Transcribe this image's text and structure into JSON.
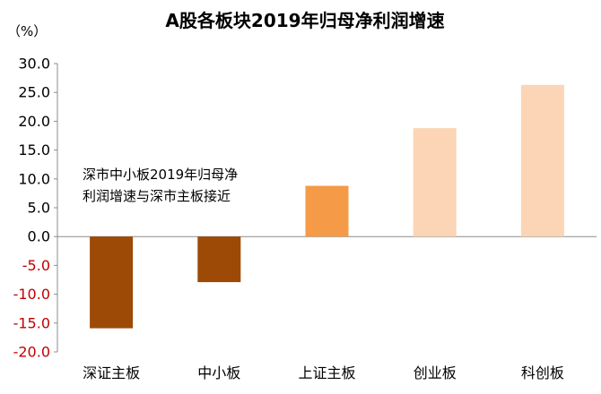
{
  "chart_data": {
    "type": "bar",
    "title": "A股各板块2019年归母净利润增速",
    "unit_label": "（%）",
    "xlabel": "",
    "ylabel": "",
    "categories": [
      "深证主板",
      "中小板",
      "上证主板",
      "创业板",
      "科创板"
    ],
    "values": [
      -15.9,
      -7.9,
      8.8,
      18.8,
      26.3
    ],
    "bar_colors": [
      "#9c4a06",
      "#9c4a06",
      "#f59a47",
      "#fbd5b5",
      "#fbd5b5"
    ],
    "ylim": [
      -20,
      30
    ],
    "yticks": [
      30,
      25,
      20,
      15,
      10,
      5,
      0,
      -5,
      -10,
      -15,
      -20
    ],
    "ytick_labels": [
      "30.0",
      "25.0",
      "20.0",
      "15.0",
      "10.0",
      "5.0",
      "0.0",
      "-5.0",
      "-10.0",
      "-15.0",
      "-20.0"
    ],
    "negative_tick_color": "#c00000",
    "grid": false,
    "legend": "none",
    "annotation": {
      "lines": [
        "深市中小板2019年归母净",
        "利润增速与深市主板接近"
      ]
    }
  }
}
